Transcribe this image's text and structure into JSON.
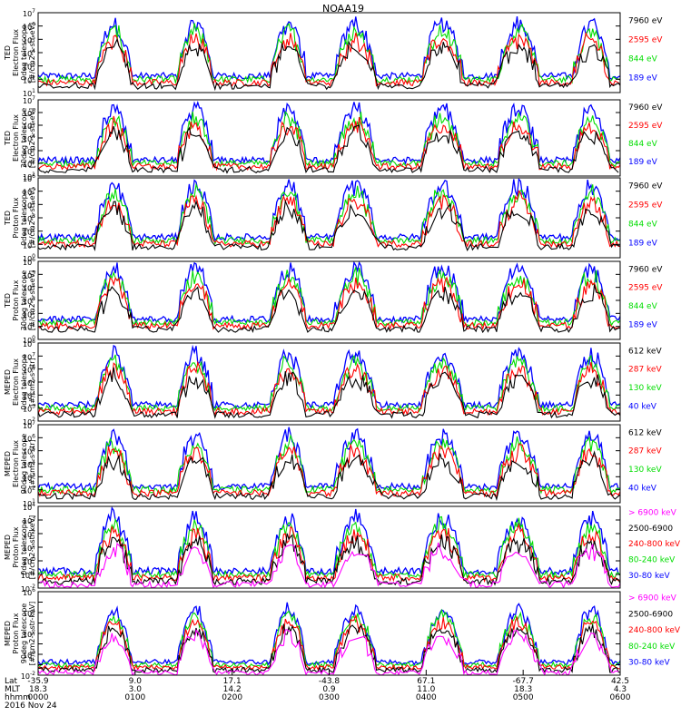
{
  "title": "NOAA19",
  "colors": {
    "blue": "#0000ff",
    "red": "#ff0000",
    "green": "#00dd00",
    "black": "#000000",
    "magenta": "#ff00ff"
  },
  "chart_data": [
    {
      "type": "scatter",
      "ylabel": [
        "TED",
        "Electron Flux",
        "0deg telescope",
        "[#/cm2-s-str-eV]"
      ],
      "yscale": "log",
      "ylim_exp": [
        1,
        7
      ],
      "legend": [
        {
          "text": "7960 eV",
          "color": "black"
        },
        {
          "text": "2595 eV",
          "color": "red"
        },
        {
          "text": "844 eV",
          "color": "green"
        },
        {
          "text": "189 eV",
          "color": "blue"
        }
      ]
    },
    {
      "type": "scatter",
      "ylabel": [
        "TED",
        "Electron Flux",
        "30deg telescope",
        "[#/cm2-s-str-eV]"
      ],
      "yscale": "log",
      "ylim_exp": [
        1,
        7
      ],
      "legend": [
        {
          "text": "7960 eV",
          "color": "black"
        },
        {
          "text": "2595 eV",
          "color": "red"
        },
        {
          "text": "844 eV",
          "color": "green"
        },
        {
          "text": "189 eV",
          "color": "blue"
        }
      ]
    },
    {
      "type": "scatter",
      "ylabel": [
        "TED",
        "Proton Flux",
        "0deg telescope",
        "[#/cm2-s-str-eV]"
      ],
      "yscale": "log",
      "ylim_exp": [
        0,
        6
      ],
      "legend": [
        {
          "text": "7960 eV",
          "color": "black"
        },
        {
          "text": "2595 eV",
          "color": "red"
        },
        {
          "text": "844 eV",
          "color": "green"
        },
        {
          "text": "189 eV",
          "color": "blue"
        }
      ]
    },
    {
      "type": "scatter",
      "ylabel": [
        "TED",
        "Proton Flux",
        "30deg telescope",
        "[#/cm2-s-str-eV]"
      ],
      "yscale": "log",
      "ylim_exp": [
        0,
        6
      ],
      "legend": [
        {
          "text": "7960 eV",
          "color": "black"
        },
        {
          "text": "2595 eV",
          "color": "red"
        },
        {
          "text": "844 eV",
          "color": "green"
        },
        {
          "text": "189 eV",
          "color": "blue"
        }
      ]
    },
    {
      "type": "scatter",
      "ylabel": [
        "MEPED",
        "Electron Flux",
        "0deg telescope",
        "[#/cm2-s-str]"
      ],
      "yscale": "log",
      "ylim_exp": [
        2,
        8
      ],
      "legend": [
        {
          "text": "612 keV",
          "color": "black"
        },
        {
          "text": "287 keV",
          "color": "red"
        },
        {
          "text": "130 keV",
          "color": "green"
        },
        {
          "text": "40 keV",
          "color": "blue"
        }
      ]
    },
    {
      "type": "scatter",
      "ylabel": [
        "MEPED",
        "Electron Flux",
        "90deg telescope",
        "[#/cm2-s-str]"
      ],
      "yscale": "log",
      "ylim_exp": [
        1,
        7
      ],
      "legend": [
        {
          "text": "612 keV",
          "color": "black"
        },
        {
          "text": "287 keV",
          "color": "red"
        },
        {
          "text": "130 keV",
          "color": "green"
        },
        {
          "text": "40 keV",
          "color": "blue"
        }
      ]
    },
    {
      "type": "scatter",
      "ylabel": [
        "MEPED",
        "Proton Flux",
        "0deg telescope",
        "[#/cm2-s-str-keV]"
      ],
      "yscale": "log",
      "ylim_exp": [
        -2,
        4
      ],
      "legend": [
        {
          "text": "> 6900 keV",
          "color": "magenta"
        },
        {
          "text": "2500-6900",
          "color": "black"
        },
        {
          "text": "240-800 keV",
          "color": "red"
        },
        {
          "text": "80-240 keV",
          "color": "green"
        },
        {
          "text": "30-80 keV",
          "color": "blue"
        }
      ]
    },
    {
      "type": "scatter",
      "ylabel": [
        "MEPED",
        "Proton Flux",
        "90deg telescope",
        "[#/cm2-s-str-keV]"
      ],
      "yscale": "log",
      "ylim_exp": [
        -2,
        6
      ],
      "legend": [
        {
          "text": "> 6900 keV",
          "color": "magenta"
        },
        {
          "text": "2500-6900",
          "color": "black"
        },
        {
          "text": "240-800 keV",
          "color": "red"
        },
        {
          "text": "80-240 keV",
          "color": "green"
        },
        {
          "text": "30-80 keV",
          "color": "blue"
        }
      ]
    }
  ],
  "xaxis": {
    "row_labels": [
      "Lat",
      "MLT",
      "hhmm",
      "2016 Nov 24"
    ],
    "ticks": [
      {
        "lat": "-35.9",
        "mlt": "18.3",
        "hhmm": "0000"
      },
      {
        "lat": "9.0",
        "mlt": "3.0",
        "hhmm": "0100"
      },
      {
        "lat": "17.1",
        "mlt": "14.2",
        "hhmm": "0200"
      },
      {
        "lat": "-43.8",
        "mlt": "0.9",
        "hhmm": "0300"
      },
      {
        "lat": "67.1",
        "mlt": "11.0",
        "hhmm": "0400"
      },
      {
        "lat": "-67.7",
        "mlt": "18.3",
        "hhmm": "0500"
      },
      {
        "lat": "42.5",
        "mlt": "4.3",
        "hhmm": "0600"
      }
    ]
  }
}
